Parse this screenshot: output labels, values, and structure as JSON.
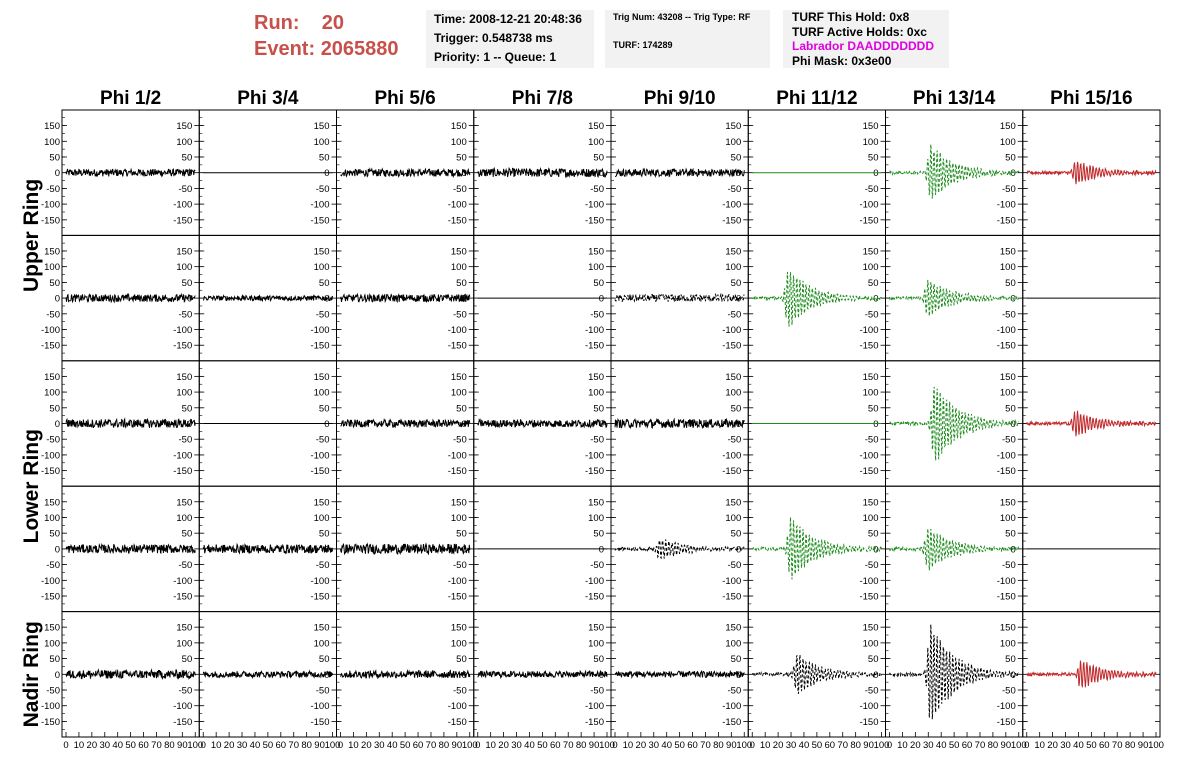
{
  "header": {
    "run_label": "Run:",
    "run_value": "20",
    "event_label": "Event:",
    "event_value": "2065880"
  },
  "info_box1": {
    "time": "Time: 2008-12-21 20:48:36",
    "trigger": "Trigger: 0.548738 ms",
    "priority": "Priority: 1 -- Queue: 1"
  },
  "info_box2": {
    "trig": "Trig Num: 43208 -- Trig Type: RF",
    "turf": "TURF: 174289"
  },
  "info_box3": {
    "hold": "TURF This Hold: 0x8",
    "active": "TURF Active Holds: 0xc",
    "labrador": "Labrador DAADDDDDDD",
    "phimask": "Phi Mask: 0x3e00"
  },
  "colors": {
    "black": "#000000",
    "green": "#1e8c1e",
    "red": "#c0282a",
    "title_red": "#c8504a",
    "labrador_magenta": "#e000e0"
  },
  "chart_data": {
    "type": "line",
    "columns": [
      "Phi 1/2",
      "Phi 3/4",
      "Phi 5/6",
      "Phi 7/8",
      "Phi 9/10",
      "Phi 11/12",
      "Phi 13/14",
      "Phi 15/16"
    ],
    "row_groups": [
      "Upper Ring",
      "Lower Ring",
      "Nadir Ring"
    ],
    "rows": 5,
    "xlim": [
      0,
      100
    ],
    "ylim": [
      -190,
      190
    ],
    "yticks": [
      -150,
      -100,
      -50,
      0,
      50,
      100,
      150
    ],
    "xticks": [
      0,
      10,
      20,
      30,
      40,
      50,
      60,
      70,
      80,
      90,
      100
    ],
    "panels": [
      [
        {
          "color": "black",
          "style": "solid",
          "mode": "noise",
          "amp": 12
        },
        {
          "color": "black",
          "style": "solid",
          "mode": "flat",
          "amp": 0
        },
        {
          "color": "black",
          "style": "solid",
          "mode": "noise",
          "amp": 12
        },
        {
          "color": "black",
          "style": "solid",
          "mode": "noise",
          "amp": 14
        },
        {
          "color": "black",
          "style": "solid",
          "mode": "noise",
          "amp": 12
        },
        {
          "color": "green",
          "style": "solid",
          "mode": "flat",
          "amp": 0
        },
        {
          "color": "green",
          "style": "dashed",
          "mode": "pulse",
          "amp": 90,
          "center": 32
        },
        {
          "color": "red",
          "style": "solid",
          "mode": "pulse",
          "amp": 40,
          "center": 38
        }
      ],
      [
        {
          "color": "black",
          "style": "solid",
          "mode": "noise",
          "amp": 12
        },
        {
          "color": "black",
          "style": "solid",
          "mode": "noise",
          "amp": 8
        },
        {
          "color": "black",
          "style": "solid",
          "mode": "noise",
          "amp": 12
        },
        {
          "color": "black",
          "style": "solid",
          "mode": "flat",
          "amp": 0
        },
        {
          "color": "black",
          "style": "dashed",
          "mode": "noise",
          "amp": 12
        },
        {
          "color": "green",
          "style": "dashed",
          "mode": "pulse",
          "amp": 95,
          "center": 28
        },
        {
          "color": "green",
          "style": "dashed",
          "mode": "pulse",
          "amp": 60,
          "center": 30
        },
        {
          "color": "black",
          "style": "solid",
          "mode": "flat",
          "amp": 0
        }
      ],
      [
        {
          "color": "black",
          "style": "solid",
          "mode": "noise",
          "amp": 14
        },
        {
          "color": "black",
          "style": "solid",
          "mode": "flat",
          "amp": 0
        },
        {
          "color": "black",
          "style": "solid",
          "mode": "noise",
          "amp": 12
        },
        {
          "color": "black",
          "style": "solid",
          "mode": "noise",
          "amp": 12
        },
        {
          "color": "black",
          "style": "solid",
          "mode": "noise",
          "amp": 14
        },
        {
          "color": "green",
          "style": "solid",
          "mode": "flat",
          "amp": 0
        },
        {
          "color": "green",
          "style": "dashed",
          "mode": "pulse",
          "amp": 130,
          "center": 35
        },
        {
          "color": "red",
          "style": "solid",
          "mode": "pulse",
          "amp": 40,
          "center": 38
        }
      ],
      [
        {
          "color": "black",
          "style": "solid",
          "mode": "noise",
          "amp": 14
        },
        {
          "color": "black",
          "style": "solid",
          "mode": "noise",
          "amp": 14
        },
        {
          "color": "black",
          "style": "solid",
          "mode": "noise",
          "amp": 16
        },
        {
          "color": "black",
          "style": "solid",
          "mode": "flat",
          "amp": 0
        },
        {
          "color": "black",
          "style": "dashed",
          "mode": "pulse",
          "amp": 35,
          "center": 35
        },
        {
          "color": "green",
          "style": "dashed",
          "mode": "pulse",
          "amp": 100,
          "center": 30
        },
        {
          "color": "green",
          "style": "dashed",
          "mode": "pulse",
          "amp": 70,
          "center": 30
        },
        {
          "color": "black",
          "style": "solid",
          "mode": "flat",
          "amp": 0
        }
      ],
      [
        {
          "color": "black",
          "style": "solid",
          "mode": "noise",
          "amp": 14
        },
        {
          "color": "black",
          "style": "solid",
          "mode": "noise",
          "amp": 10
        },
        {
          "color": "black",
          "style": "solid",
          "mode": "noise",
          "amp": 12
        },
        {
          "color": "black",
          "style": "solid",
          "mode": "noise",
          "amp": 10
        },
        {
          "color": "black",
          "style": "solid",
          "mode": "noise",
          "amp": 10
        },
        {
          "color": "black",
          "style": "dashed",
          "mode": "pulse",
          "amp": 65,
          "center": 35
        },
        {
          "color": "black",
          "style": "dashed",
          "mode": "pulse",
          "amp": 160,
          "center": 32
        },
        {
          "color": "red",
          "style": "solid",
          "mode": "pulse",
          "amp": 45,
          "center": 42
        }
      ]
    ]
  }
}
